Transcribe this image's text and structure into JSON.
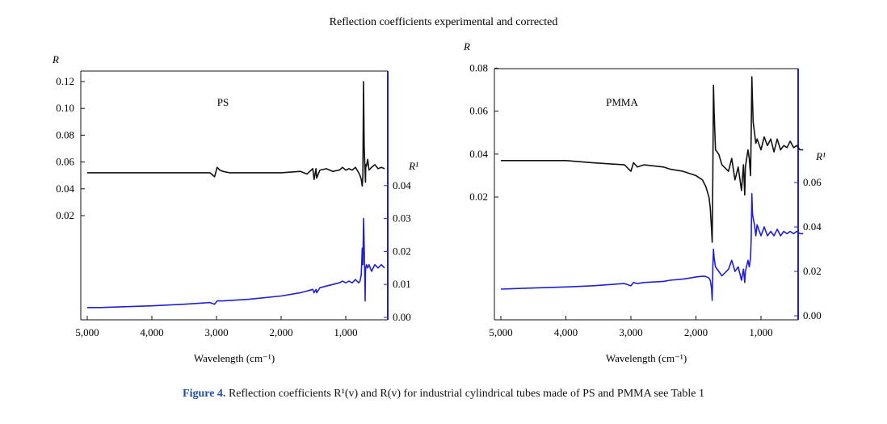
{
  "figure": {
    "title": "Reflection coefficients experimental and corrected",
    "caption_prefix": "Figure 4.",
    "caption_text": "Reflection coefficients R¹(v) and R(v) for industrial cylindrical tubes made of PS and PMMA see Table 1",
    "colors": {
      "black_series": "#111111",
      "blue_series": "#1f1fd6",
      "axis": "#111111",
      "right_axis": "#1f1fd6",
      "caption_accent": "#1f4e9e"
    }
  },
  "chart_data": [
    {
      "type": "line",
      "panel_label": "PS",
      "xlabel": "Wavelength (cm⁻¹)",
      "ylabel_left": "R",
      "ylabel_right": "R¹",
      "xlim": [
        5000,
        300
      ],
      "x_ticks": [
        5000,
        4000,
        3000,
        2000,
        1000
      ],
      "x_tick_labels": [
        "5,000",
        "4,000",
        "3,000",
        "2,000",
        "1,000"
      ],
      "y_left_ticks": [
        0.02,
        0.04,
        0.06,
        0.08,
        0.1,
        0.12
      ],
      "y_left_tick_labels": [
        "0.02",
        "0.04",
        "0.06",
        "0.08",
        "0.10",
        "0.12"
      ],
      "y_right_ticks": [
        0.0,
        0.01,
        0.02,
        0.03,
        0.04
      ],
      "y_right_tick_labels": [
        "0.00",
        "0.01",
        "0.02",
        "0.03",
        "0.04"
      ],
      "series": [
        {
          "axis": "left",
          "color": "#111111",
          "x": [
            5000,
            4500,
            4000,
            3500,
            3100,
            3030,
            2990,
            2950,
            2900,
            2800,
            2500,
            2000,
            1700,
            1600,
            1510,
            1490,
            1460,
            1450,
            1400,
            1300,
            1200,
            1100,
            1050,
            1000,
            950,
            900,
            850,
            800,
            780,
            760,
            745,
            735,
            725,
            715,
            705,
            700,
            695,
            690,
            680,
            660,
            640,
            600,
            550,
            500,
            450,
            400
          ],
          "y": [
            0.052,
            0.052,
            0.052,
            0.052,
            0.052,
            0.049,
            0.056,
            0.054,
            0.053,
            0.052,
            0.052,
            0.052,
            0.053,
            0.051,
            0.055,
            0.047,
            0.055,
            0.048,
            0.054,
            0.055,
            0.053,
            0.054,
            0.056,
            0.054,
            0.055,
            0.054,
            0.056,
            0.052,
            0.05,
            0.047,
            0.042,
            0.05,
            0.12,
            0.072,
            0.058,
            0.052,
            0.045,
            0.058,
            0.057,
            0.062,
            0.054,
            0.056,
            0.058,
            0.055,
            0.056,
            0.055
          ]
        },
        {
          "axis": "right",
          "color": "#1f1fd6",
          "x": [
            5000,
            4800,
            4000,
            3500,
            3100,
            3030,
            2990,
            2950,
            2900,
            2500,
            2000,
            1700,
            1600,
            1510,
            1490,
            1460,
            1450,
            1400,
            1300,
            1200,
            1100,
            1050,
            1000,
            950,
            900,
            850,
            800,
            780,
            760,
            745,
            735,
            725,
            715,
            705,
            700,
            695,
            690,
            680,
            660,
            640,
            600,
            550,
            500,
            450,
            400
          ],
          "y": [
            0.003,
            0.003,
            0.0035,
            0.004,
            0.0045,
            0.004,
            0.005,
            0.005,
            0.005,
            0.0055,
            0.0065,
            0.0075,
            0.008,
            0.0085,
            0.0075,
            0.0085,
            0.0075,
            0.009,
            0.0095,
            0.01,
            0.0105,
            0.011,
            0.0105,
            0.011,
            0.0105,
            0.0115,
            0.0105,
            0.011,
            0.013,
            0.021,
            0.016,
            0.03,
            0.022,
            0.012,
            0.005,
            0.014,
            0.015,
            0.016,
            0.015,
            0.016,
            0.014,
            0.016,
            0.015,
            0.016,
            0.015
          ]
        }
      ]
    },
    {
      "type": "line",
      "panel_label": "PMMA",
      "xlabel": "Wavelength (cm⁻¹)",
      "ylabel_left": "R",
      "ylabel_right": "R¹",
      "xlim": [
        5000,
        300
      ],
      "x_ticks": [
        5000,
        4000,
        3000,
        2000,
        1000
      ],
      "x_tick_labels": [
        "5,000",
        "4,000",
        "3,000",
        "2,000",
        "1,000"
      ],
      "y_left_ticks": [
        0.02,
        0.04,
        0.06,
        0.08
      ],
      "y_left_tick_labels": [
        "0.02",
        "0.04",
        "0.06",
        "0.08"
      ],
      "y_right_ticks": [
        0.0,
        0.02,
        0.04,
        0.06
      ],
      "y_right_tick_labels": [
        "0.00",
        "0.02",
        "0.04",
        "0.06"
      ],
      "series": [
        {
          "axis": "left",
          "color": "#111111",
          "x": [
            5000,
            4500,
            4000,
            3600,
            3100,
            3000,
            2960,
            2900,
            2800,
            2500,
            2400,
            2200,
            2100,
            2000,
            1900,
            1850,
            1800,
            1780,
            1760,
            1750,
            1740,
            1730,
            1720,
            1700,
            1650,
            1600,
            1500,
            1450,
            1400,
            1350,
            1300,
            1270,
            1250,
            1240,
            1200,
            1180,
            1160,
            1150,
            1140,
            1130,
            1120,
            1100,
            1080,
            1060,
            1000,
            950,
            900,
            850,
            800,
            750,
            700,
            650,
            600,
            550,
            500,
            450,
            400,
            350
          ],
          "y": [
            0.037,
            0.037,
            0.037,
            0.036,
            0.035,
            0.032,
            0.036,
            0.034,
            0.035,
            0.034,
            0.033,
            0.032,
            0.031,
            0.03,
            0.028,
            0.025,
            0.02,
            0.015,
            0.005,
            -0.001,
            0.03,
            0.072,
            0.06,
            0.042,
            0.04,
            0.035,
            0.032,
            0.038,
            0.028,
            0.034,
            0.023,
            0.035,
            0.021,
            0.034,
            0.042,
            0.038,
            0.03,
            0.05,
            0.076,
            0.065,
            0.055,
            0.05,
            0.045,
            0.047,
            0.042,
            0.048,
            0.044,
            0.047,
            0.041,
            0.047,
            0.042,
            0.044,
            0.043,
            0.046,
            0.043,
            0.044,
            0.042,
            0.042
          ]
        },
        {
          "axis": "right",
          "color": "#1f1fd6",
          "x": [
            5000,
            4500,
            4000,
            3600,
            3100,
            3000,
            2960,
            2900,
            2800,
            2500,
            2400,
            2200,
            2100,
            2000,
            1900,
            1850,
            1800,
            1780,
            1760,
            1750,
            1740,
            1730,
            1720,
            1700,
            1650,
            1600,
            1500,
            1450,
            1400,
            1350,
            1300,
            1270,
            1250,
            1240,
            1200,
            1180,
            1160,
            1150,
            1140,
            1130,
            1120,
            1100,
            1080,
            1060,
            1000,
            950,
            900,
            850,
            800,
            750,
            700,
            650,
            600,
            550,
            500,
            450,
            400,
            350
          ],
          "y": [
            0.012,
            0.0125,
            0.013,
            0.0135,
            0.0145,
            0.0135,
            0.015,
            0.0145,
            0.015,
            0.0155,
            0.016,
            0.0165,
            0.017,
            0.0175,
            0.0178,
            0.0177,
            0.017,
            0.016,
            0.0125,
            0.007,
            0.022,
            0.03,
            0.026,
            0.022,
            0.02,
            0.018,
            0.021,
            0.025,
            0.02,
            0.022,
            0.016,
            0.021,
            0.015,
            0.02,
            0.025,
            0.022,
            0.026,
            0.035,
            0.055,
            0.046,
            0.044,
            0.041,
            0.036,
            0.041,
            0.036,
            0.04,
            0.036,
            0.038,
            0.036,
            0.039,
            0.036,
            0.038,
            0.037,
            0.038,
            0.037,
            0.038,
            0.037,
            0.037
          ]
        }
      ]
    }
  ]
}
